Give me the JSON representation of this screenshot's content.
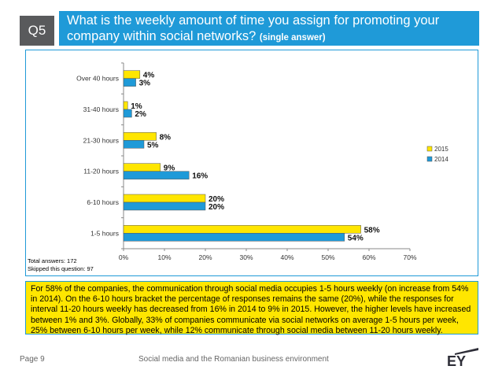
{
  "header": {
    "badge": "Q5",
    "title": "What is the weekly amount of time you assign for promoting your company within social networks?",
    "title_note": "(single answer)"
  },
  "colors": {
    "accent": "#1f9ad8",
    "series_2015": "#ffe600",
    "series_2014": "#1f9ad8",
    "badge": "#595a5c"
  },
  "chart_data": {
    "type": "bar",
    "orientation": "horizontal",
    "categories": [
      "Over 40 hours",
      "31-40 hours",
      "21-30 hours",
      "11-20 hours",
      "6-10 hours",
      "1-5 hours"
    ],
    "series": [
      {
        "name": "2015",
        "values": [
          4,
          1,
          8,
          9,
          20,
          58
        ],
        "labels": [
          "4%",
          "1%",
          "8%",
          "9%",
          "20%",
          "58%"
        ]
      },
      {
        "name": "2014",
        "values": [
          3,
          2,
          5,
          16,
          20,
          54
        ],
        "labels": [
          "3%",
          "2%",
          "5%",
          "16%",
          "20%",
          "54%"
        ]
      }
    ],
    "xlim": [
      0,
      70
    ],
    "xticks": [
      "0%",
      "10%",
      "20%",
      "30%",
      "40%",
      "50%",
      "60%",
      "70%"
    ],
    "legend": [
      "2015",
      "2014"
    ],
    "legend_position": "right"
  },
  "notes": {
    "total": "Total answers: 172",
    "skipped": "Skipped this question: 97"
  },
  "summary": "For 58% of the companies, the communication through social media occupies 1-5 hours weekly (on increase from 54% in 2014). On the 6-10 hours bracket the percentage of responses remains the same (20%), while the responses for interval 11-20 hours weekly has decreased from 16% in 2014 to 9% in 2015. However, the higher levels have increased between 1% and 3%. Globally, 33% of companies communicate via social networks on average 1-5 hours per week, 25% between 6-10 hours per week, while 12% communicate through social media between 11-20 hours weekly.",
  "footer": {
    "page": "Page 9",
    "text": "Social media and the Romanian business environment",
    "logo": "EY"
  }
}
